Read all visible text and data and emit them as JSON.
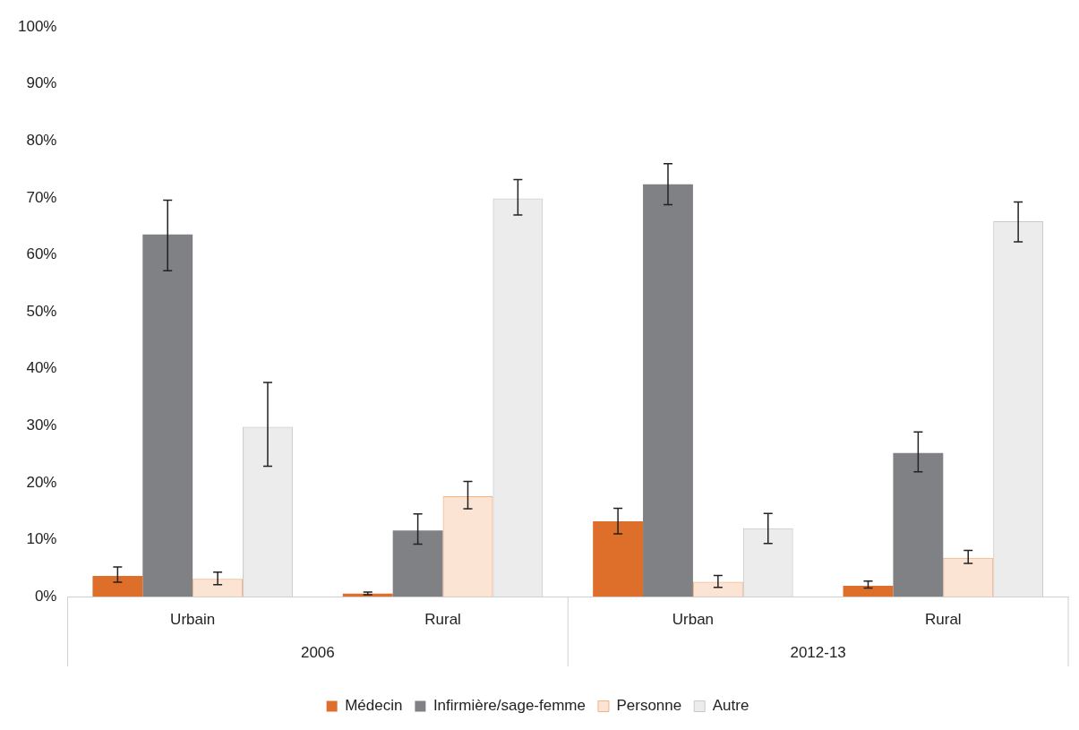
{
  "chart_data": {
    "type": "bar",
    "categories": [
      "Urbain",
      "Rural",
      "Urban",
      "Rural"
    ],
    "annotations": [
      "2006",
      "2012-13"
    ],
    "series": [
      {
        "name": "Médecin",
        "color": "#dd6f2a",
        "values": [
          3.6,
          0.5,
          13.2,
          1.9
        ],
        "errors": [
          [
            2.5,
            5.2
          ],
          [
            0.3,
            0.8
          ],
          [
            11.0,
            15.5
          ],
          [
            1.5,
            2.7
          ]
        ]
      },
      {
        "name": "Infirmière/sage-femme",
        "color": "#808184",
        "values": [
          63.6,
          11.6,
          72.4,
          25.2
        ],
        "errors": [
          [
            57.2,
            69.6
          ],
          [
            9.2,
            14.5
          ],
          [
            68.8,
            76.0
          ],
          [
            21.9,
            28.9
          ]
        ]
      },
      {
        "name": "Personne",
        "color": "#f4b183",
        "values": [
          3.1,
          17.6,
          2.6,
          6.8
        ],
        "errors": [
          [
            2.1,
            4.3
          ],
          [
            15.4,
            20.2
          ],
          [
            1.6,
            3.7
          ],
          [
            5.8,
            8.1
          ]
        ]
      },
      {
        "name": "Autre",
        "color": "#c9c9c9",
        "values": [
          29.8,
          69.9,
          12.0,
          65.9
        ],
        "errors": [
          [
            22.9,
            37.6
          ],
          [
            67.0,
            73.2
          ],
          [
            9.3,
            14.6
          ],
          [
            62.3,
            69.3
          ]
        ]
      }
    ],
    "ylim": [
      0,
      100
    ],
    "yticks": [
      {
        "value": 0,
        "label": "0%"
      },
      {
        "value": 10,
        "label": "10%"
      },
      {
        "value": 20,
        "label": "20%"
      },
      {
        "value": 30,
        "label": "30%"
      },
      {
        "value": 40,
        "label": "40%"
      },
      {
        "value": 50,
        "label": "50%"
      },
      {
        "value": 60,
        "label": "60%"
      },
      {
        "value": 70,
        "label": "70%"
      },
      {
        "value": 80,
        "label": "80%"
      },
      {
        "value": 90,
        "label": "90%"
      },
      {
        "value": 100,
        "label": "100%"
      }
    ],
    "grid": false,
    "legend": "bottom"
  }
}
